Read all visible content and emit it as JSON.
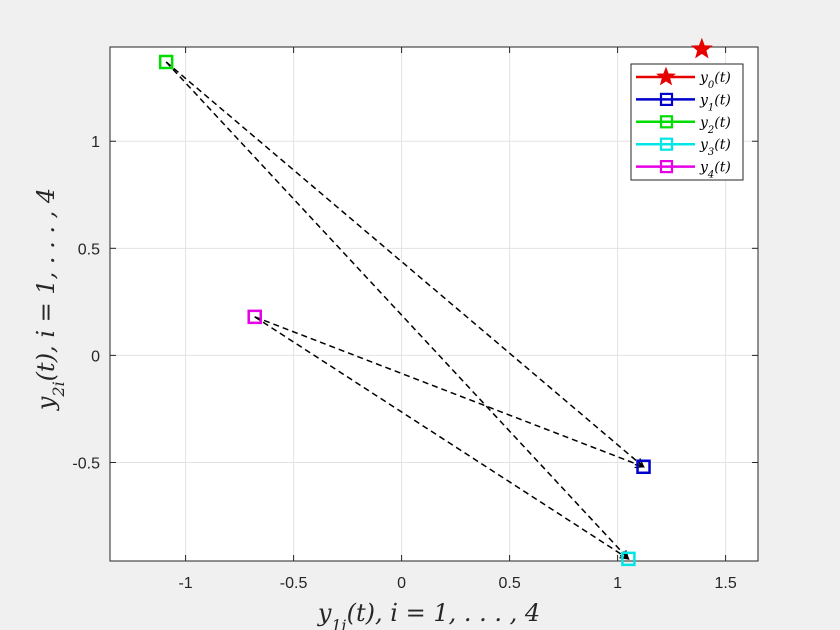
{
  "chart_data": {
    "type": "scatter",
    "xlabel": "y_{1i}(t), i = 1, . . . , 4",
    "ylabel": "y_{2i}(t), i = 1, . . . , 4",
    "xlim": [
      -1.35,
      1.65
    ],
    "ylim": [
      -0.96,
      1.44
    ],
    "xticks": [
      -1,
      -0.5,
      0,
      0.5,
      1,
      1.5
    ],
    "xtick_labels": [
      "-1",
      "-0.5",
      "0",
      "0.5",
      "1",
      "1.5"
    ],
    "yticks": [
      -0.5,
      0,
      0.5,
      1
    ],
    "ytick_labels": [
      "-0.5",
      "0",
      "0.5",
      "1"
    ],
    "grid": true,
    "legend_position": "top-right",
    "series": [
      {
        "name": "y_0(t)",
        "marker": "star",
        "color": "#e60000",
        "x": 1.39,
        "y": 1.43
      },
      {
        "name": "y_1(t)",
        "marker": "square",
        "color": "#0000cc",
        "x": 1.12,
        "y": -0.52
      },
      {
        "name": "y_2(t)",
        "marker": "square",
        "color": "#00dd00",
        "x": -1.09,
        "y": 1.37
      },
      {
        "name": "y_3(t)",
        "marker": "square",
        "color": "#00e6e6",
        "x": 1.05,
        "y": -0.95
      },
      {
        "name": "y_4(t)",
        "marker": "square",
        "color": "#e600e6",
        "x": -0.68,
        "y": 0.18
      }
    ],
    "links": [
      {
        "from": "y_2(t)",
        "to": "y_1(t)"
      },
      {
        "from": "y_2(t)",
        "to": "y_3(t)"
      },
      {
        "from": "y_4(t)",
        "to": "y_1(t)"
      },
      {
        "from": "y_4(t)",
        "to": "y_3(t)"
      }
    ]
  }
}
